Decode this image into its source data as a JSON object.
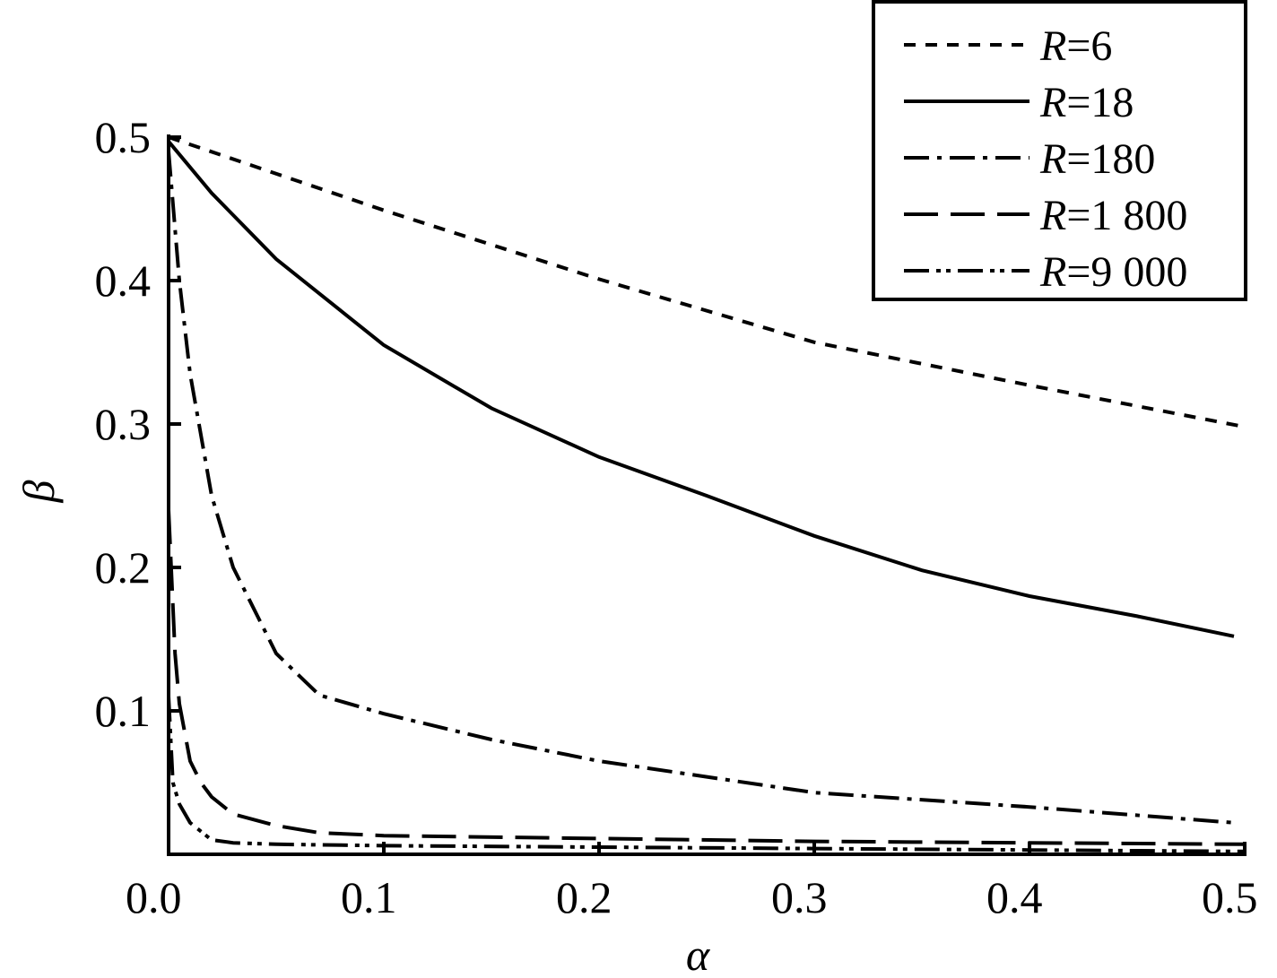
{
  "chart_data": {
    "type": "line",
    "xlabel": "α",
    "ylabel": "β",
    "xlim": [
      0.0,
      0.5
    ],
    "ylim": [
      0.0,
      0.5
    ],
    "xticks": [
      "0.0",
      "0.1",
      "0.2",
      "0.3",
      "0.4",
      "0.5"
    ],
    "yticks": [
      "0.1",
      "0.2",
      "0.3",
      "0.4",
      "0.5"
    ],
    "legend_position": "top-right",
    "grid": false,
    "series": [
      {
        "name": "R=6",
        "legend_var": "R",
        "legend_value": "=6",
        "style": "short-dash",
        "x": [
          0.0,
          0.1,
          0.2,
          0.3,
          0.4,
          0.5
        ],
        "y": [
          0.5,
          0.449,
          0.401,
          0.357,
          0.327,
          0.298
        ]
      },
      {
        "name": "R=18",
        "legend_var": "R",
        "legend_value": "=18",
        "style": "solid",
        "x": [
          0.0,
          0.02,
          0.05,
          0.1,
          0.15,
          0.2,
          0.25,
          0.3,
          0.35,
          0.4,
          0.45,
          0.495
        ],
        "y": [
          0.497,
          0.461,
          0.415,
          0.355,
          0.311,
          0.277,
          0.25,
          0.222,
          0.198,
          0.18,
          0.166,
          0.152
        ]
      },
      {
        "name": "R=180",
        "legend_var": "R",
        "legend_value": "=180",
        "style": "dash-dot",
        "x": [
          0.0,
          0.005,
          0.01,
          0.02,
          0.03,
          0.05,
          0.07,
          0.1,
          0.15,
          0.2,
          0.3,
          0.4,
          0.495
        ],
        "y": [
          0.49,
          0.4,
          0.335,
          0.25,
          0.2,
          0.14,
          0.111,
          0.098,
          0.08,
          0.065,
          0.043,
          0.033,
          0.022
        ]
      },
      {
        "name": "R=1 800",
        "legend_var": "R",
        "legend_value": "=1 800",
        "style": "long-dash",
        "x": [
          0.0,
          0.003,
          0.005,
          0.01,
          0.015,
          0.02,
          0.03,
          0.05,
          0.07,
          0.1,
          0.2,
          0.3,
          0.4,
          0.5
        ],
        "y": [
          0.24,
          0.14,
          0.105,
          0.065,
          0.05,
          0.04,
          0.028,
          0.02,
          0.015,
          0.013,
          0.011,
          0.009,
          0.008,
          0.007
        ]
      },
      {
        "name": "R=9 000",
        "legend_var": "R",
        "legend_value": "=9 000",
        "style": "dash-dot-dot",
        "x": [
          0.0,
          0.002,
          0.005,
          0.01,
          0.02,
          0.03,
          0.05,
          0.1,
          0.2,
          0.3,
          0.4,
          0.5
        ],
        "y": [
          0.11,
          0.05,
          0.035,
          0.022,
          0.01,
          0.008,
          0.007,
          0.006,
          0.005,
          0.004,
          0.003,
          0.002
        ]
      }
    ]
  }
}
